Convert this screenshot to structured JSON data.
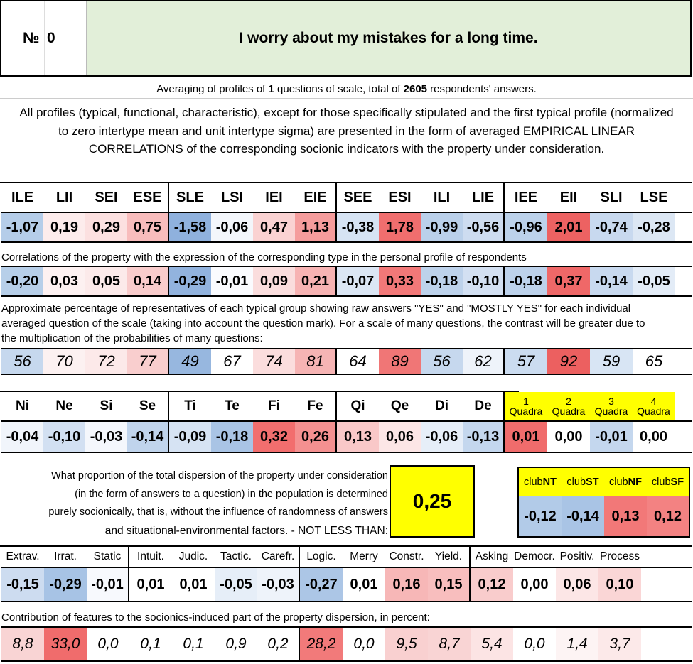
{
  "header": {
    "number_label": "№",
    "number_value": "0",
    "question": "I worry about my mistakes for a long time."
  },
  "averaging": {
    "prefix": "Averaging of profiles of ",
    "questions_count": "1",
    "middle": " questions of scale, total of ",
    "respondents": "2605",
    "suffix": " respondents' answers."
  },
  "description": "All profiles (typical, functional, characteristic), except for those specifically stipulated and the first typical profile (normalized to zero intertype mean and unit intertype sigma) are presented in the form of averaged EMPIRICAL LINEAR CORRELATIONS of the corresponding socionic indicators with the property under consideration.",
  "types": {
    "headers": [
      "ILE",
      "LII",
      "SEI",
      "ESE",
      "SLE",
      "LSI",
      "IEI",
      "EIE",
      "SEE",
      "ESI",
      "ILI",
      "LIE",
      "IEE",
      "EII",
      "SLI",
      "LSE"
    ],
    "values": [
      "-1,07",
      "0,19",
      "0,29",
      "0,75",
      "-1,58",
      "-0,06",
      "0,47",
      "1,13",
      "-0,38",
      "1,78",
      "-0,99",
      "-0,56",
      "-0,96",
      "2,01",
      "-0,74",
      "-0,28"
    ],
    "value_colors": [
      "#b5cde9",
      "#fdecec",
      "#fce0e0",
      "#f8bcbc",
      "#8fb1dd",
      "#f3f6fb",
      "#fad2d2",
      "#f59c9c",
      "#d6e3f3",
      "#f06e6e",
      "#bad0ea",
      "#cddcf0",
      "#bcd2eb",
      "#ed6262",
      "#c8d9ef",
      "#dce7f4"
    ],
    "corr_label": "Correlations of the property with the expression of the corresponding type in the personal profile of respondents",
    "correlations": [
      "-0,20",
      "0,03",
      "0,05",
      "0,14",
      "-0,29",
      "-0,01",
      "0,09",
      "0,21",
      "-0,07",
      "0,33",
      "-0,18",
      "-0,10",
      "-0,18",
      "0,37",
      "-0,14",
      "-0,05"
    ],
    "corr_colors": [
      "#b7cfe9",
      "#fdf1f1",
      "#fceaea",
      "#f9cccc",
      "#92b3de",
      "#fafbfe",
      "#fadddd",
      "#f7b3b3",
      "#dbe6f4",
      "#f27878",
      "#bdd2eb",
      "#d3e0f2",
      "#bdd2eb",
      "#ef6868",
      "#c8d9ef",
      "#e3ecf7"
    ],
    "pct_label": "Approximate percentage of representatives of each typical group showing raw answers \"YES\" and \"MOSTLY YES\" for each individual averaged question of the scale (taking into account the question mark). For a scale of many questions, the contrast will be greater due to the multiplication of the probabilities of many questions:",
    "percentages": [
      "56",
      "70",
      "72",
      "77",
      "49",
      "67",
      "74",
      "81",
      "64",
      "89",
      "56",
      "62",
      "57",
      "92",
      "59",
      "65"
    ],
    "pct_colors": [
      "#c6d8ee",
      "#fcf1f1",
      "#fce9e9",
      "#f9cece",
      "#97b7df",
      "#ffffff",
      "#fbdddd",
      "#f6b4b4",
      "#ffffff",
      "#f07676",
      "#c6d8ee",
      "#eef3fa",
      "#cbdcf0",
      "#ec6060",
      "#d8e5f4",
      "#ffffff"
    ]
  },
  "functions": {
    "headers": [
      "Ni",
      "Ne",
      "Si",
      "Se",
      "Ti",
      "Te",
      "Fi",
      "Fe",
      "Qi",
      "Qe",
      "Di",
      "De"
    ],
    "values": [
      "-0,04",
      "-0,10",
      "-0,03",
      "-0,14",
      "-0,09",
      "-0,18",
      "0,32",
      "0,26",
      "0,13",
      "0,06",
      "-0,06",
      "-0,13"
    ],
    "colors": [
      "#f1f5fb",
      "#d2e0f2",
      "#f4f7fc",
      "#c0d4ec",
      "#d6e3f3",
      "#a9c4e5",
      "#f26e6e",
      "#f49090",
      "#f9c8c8",
      "#fce6e6",
      "#e6eef8",
      "#c4d7ee"
    ]
  },
  "quadras": {
    "headers": [
      {
        "num": "1",
        "label": "Quadra"
      },
      {
        "num": "2",
        "label": "Quadra"
      },
      {
        "num": "3",
        "label": "Quadra"
      },
      {
        "num": "4",
        "label": "Quadra"
      }
    ],
    "values": [
      "0,01",
      "0,00",
      "-0,01",
      "0,00"
    ],
    "colors": [
      "#f06c6c",
      "#ffffff",
      "#c4d7ee",
      "#ffffff"
    ],
    "header_color": "#ffff00"
  },
  "dispersion": {
    "lines": [
      "What proportion of the total dispersion of the property under consideration",
      "(in the form of answers to a question) in the population is determined",
      "purely socionically, that is, without the influence of randomness of answers",
      "and situational-environmental factors. - NOT LESS THAN:"
    ],
    "value": "0,25",
    "highlight_color": "#ffff00"
  },
  "clubs": {
    "headers": [
      {
        "pre": "club",
        "strong": "NT"
      },
      {
        "pre": "club",
        "strong": "ST"
      },
      {
        "pre": "club",
        "strong": "NF"
      },
      {
        "pre": "club",
        "strong": "SF"
      }
    ],
    "values": [
      "-0,12",
      "-0,14",
      "0,13",
      "0,12"
    ],
    "colors": [
      "#b2cbe8",
      "#a9c4e5",
      "#f27878",
      "#f38282"
    ]
  },
  "traits": {
    "headers": [
      "Extrav.",
      "Irrat.",
      "Static",
      "Intuit.",
      "Judic.",
      "Tactic.",
      "Carefr.",
      "Logic.",
      "Merry",
      "Constr.",
      "Yield.",
      "Asking",
      "Democr.",
      "Positiv.",
      "Process"
    ],
    "values": [
      "-0,15",
      "-0,29",
      "-0,01",
      "0,01",
      "0,01",
      "-0,05",
      "-0,03",
      "-0,27",
      "0,01",
      "0,16",
      "0,15",
      "0,12",
      "0,00",
      "0,06",
      "0,10"
    ],
    "colors": [
      "#cddcf0",
      "#a7c3e5",
      "#f7f9fd",
      "#ffffff",
      "#ffffff",
      "#e6eef8",
      "#eef3fa",
      "#acc6e6",
      "#ffffff",
      "#f7b7b7",
      "#f8bebe",
      "#f9cccc",
      "#ffffff",
      "#fce6e6",
      "#fad6d6"
    ],
    "contrib_label": "Contribution of features to the socionics-induced part of the property dispersion, in percent:",
    "contributions": [
      "8,8",
      "33,0",
      "0,0",
      "0,1",
      "0,1",
      "0,9",
      "0,2",
      "28,2",
      "0,0",
      "9,5",
      "8,7",
      "5,4",
      "0,0",
      "1,4",
      "3,7"
    ],
    "contrib_colors": [
      "#f9d4d4",
      "#f06c6c",
      "#ffffff",
      "#ffffff",
      "#ffffff",
      "#ffffff",
      "#ffffff",
      "#f27a7a",
      "#ffffff",
      "#f9d0d0",
      "#f9d4d4",
      "#fce4e4",
      "#ffffff",
      "#fdf4f4",
      "#fce9e9"
    ]
  },
  "colors": {
    "question_bg": "#e2efd9"
  }
}
